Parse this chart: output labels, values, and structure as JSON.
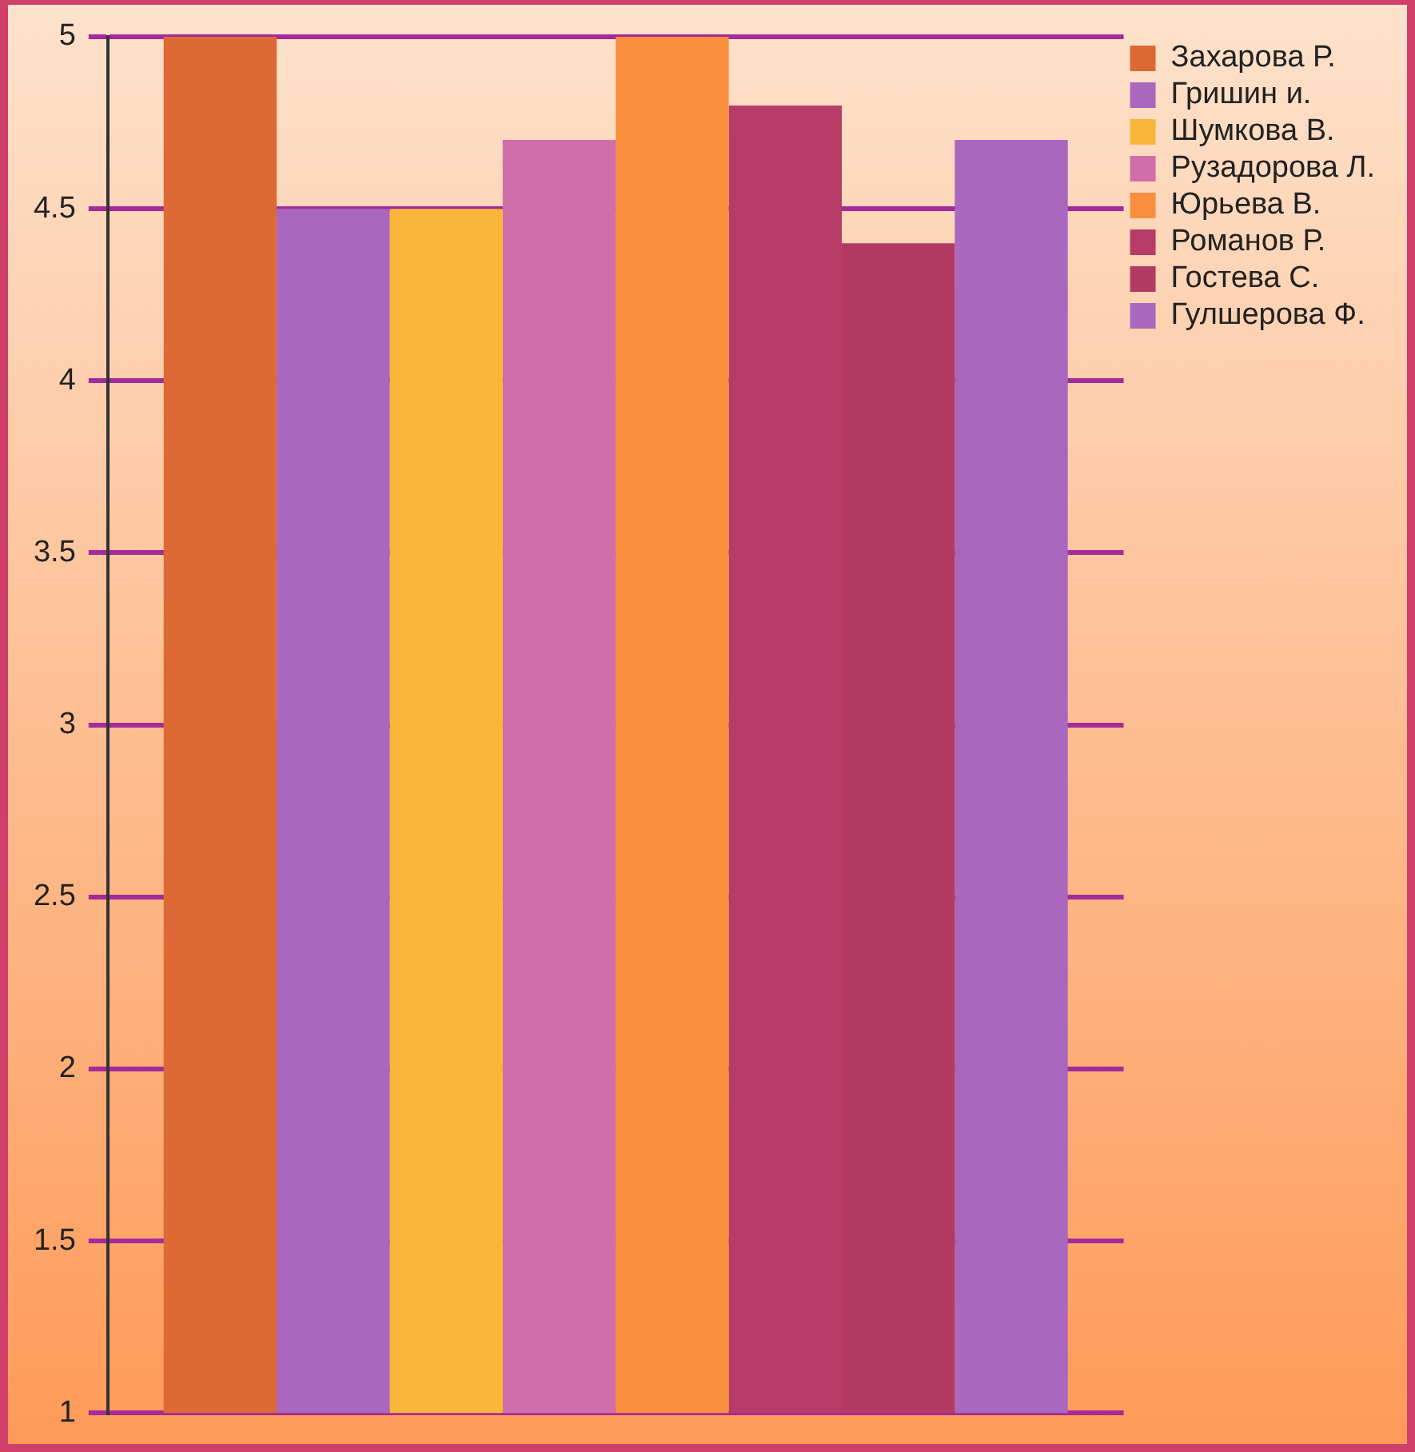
{
  "chart_data": {
    "type": "bar",
    "categories": [
      null
    ],
    "series": [
      {
        "name": "Захарова Р.",
        "color": "#dd6a35",
        "values": [
          5
        ]
      },
      {
        "name": "Гришин и.",
        "color": "#a967be",
        "values": [
          4.5
        ]
      },
      {
        "name": "Шумкова В.",
        "color": "#f8b63a",
        "values": [
          4.5
        ]
      },
      {
        "name": "Рузадорова Л.",
        "color": "#d06ea9",
        "values": [
          4.7
        ]
      },
      {
        "name": "Юрьева В.",
        "color": "#f98e3e",
        "values": [
          5
        ]
      },
      {
        "name": "Романов Р.",
        "color": "#b73b67",
        "values": [
          4.8
        ]
      },
      {
        "name": "Гостева С.",
        "color": "#b33a62",
        "values": [
          4.4
        ]
      },
      {
        "name": "Гулшерова Ф.",
        "color": "#a967be",
        "values": [
          4.7
        ]
      }
    ],
    "ylim": [
      1,
      5
    ],
    "yticks": [
      1,
      1.5,
      2,
      2.5,
      3,
      3.5,
      4,
      4.5,
      5
    ],
    "grid": "y",
    "legend": "right"
  }
}
